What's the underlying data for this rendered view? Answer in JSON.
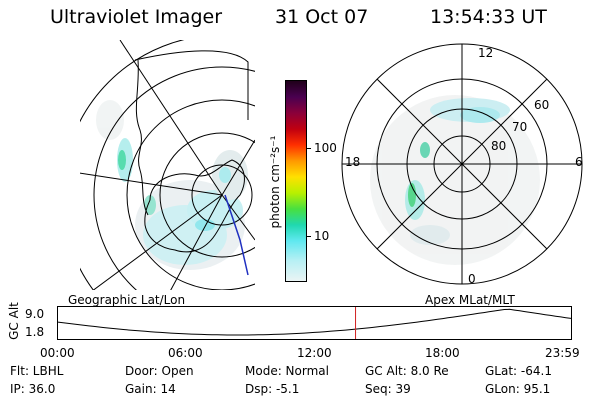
{
  "header": {
    "title": "Ultraviolet Imager",
    "date": "31 Oct 07",
    "time": "13:54:33 UT"
  },
  "colorbar": {
    "unit_label": "photon cm⁻²s⁻¹",
    "ticks": [
      "100",
      "10"
    ]
  },
  "apex_plot": {
    "clock_labels": {
      "top": "12",
      "bottom": "0",
      "left": "18",
      "right": "6"
    },
    "lat_labels": [
      "60",
      "70",
      "80"
    ]
  },
  "left_map_label": "Geographic Lat/Lon",
  "right_map_label": "Apex  MLat/MLT",
  "altitude_panel": {
    "axis_label": "GC Alt",
    "y_ticks": [
      "9.0",
      "1.8"
    ],
    "x_ticks": [
      "00:00",
      "06:00",
      "12:00",
      "18:00",
      "23:59"
    ],
    "current_time_fraction": 0.58,
    "marker_color": "#d02020"
  },
  "status": {
    "filter": "Flt: LBHL",
    "ip": "IP: 36.0",
    "door": "Door: Open",
    "gain": "Gain: 14",
    "mode": "Mode: Normal",
    "dsp": "Dsp:   -5.1",
    "gc_alt": "GC Alt: 8.0 Re",
    "seq": "Seq: 39",
    "glat": "GLat:  -64.1",
    "glon": "GLon:  95.1"
  }
}
